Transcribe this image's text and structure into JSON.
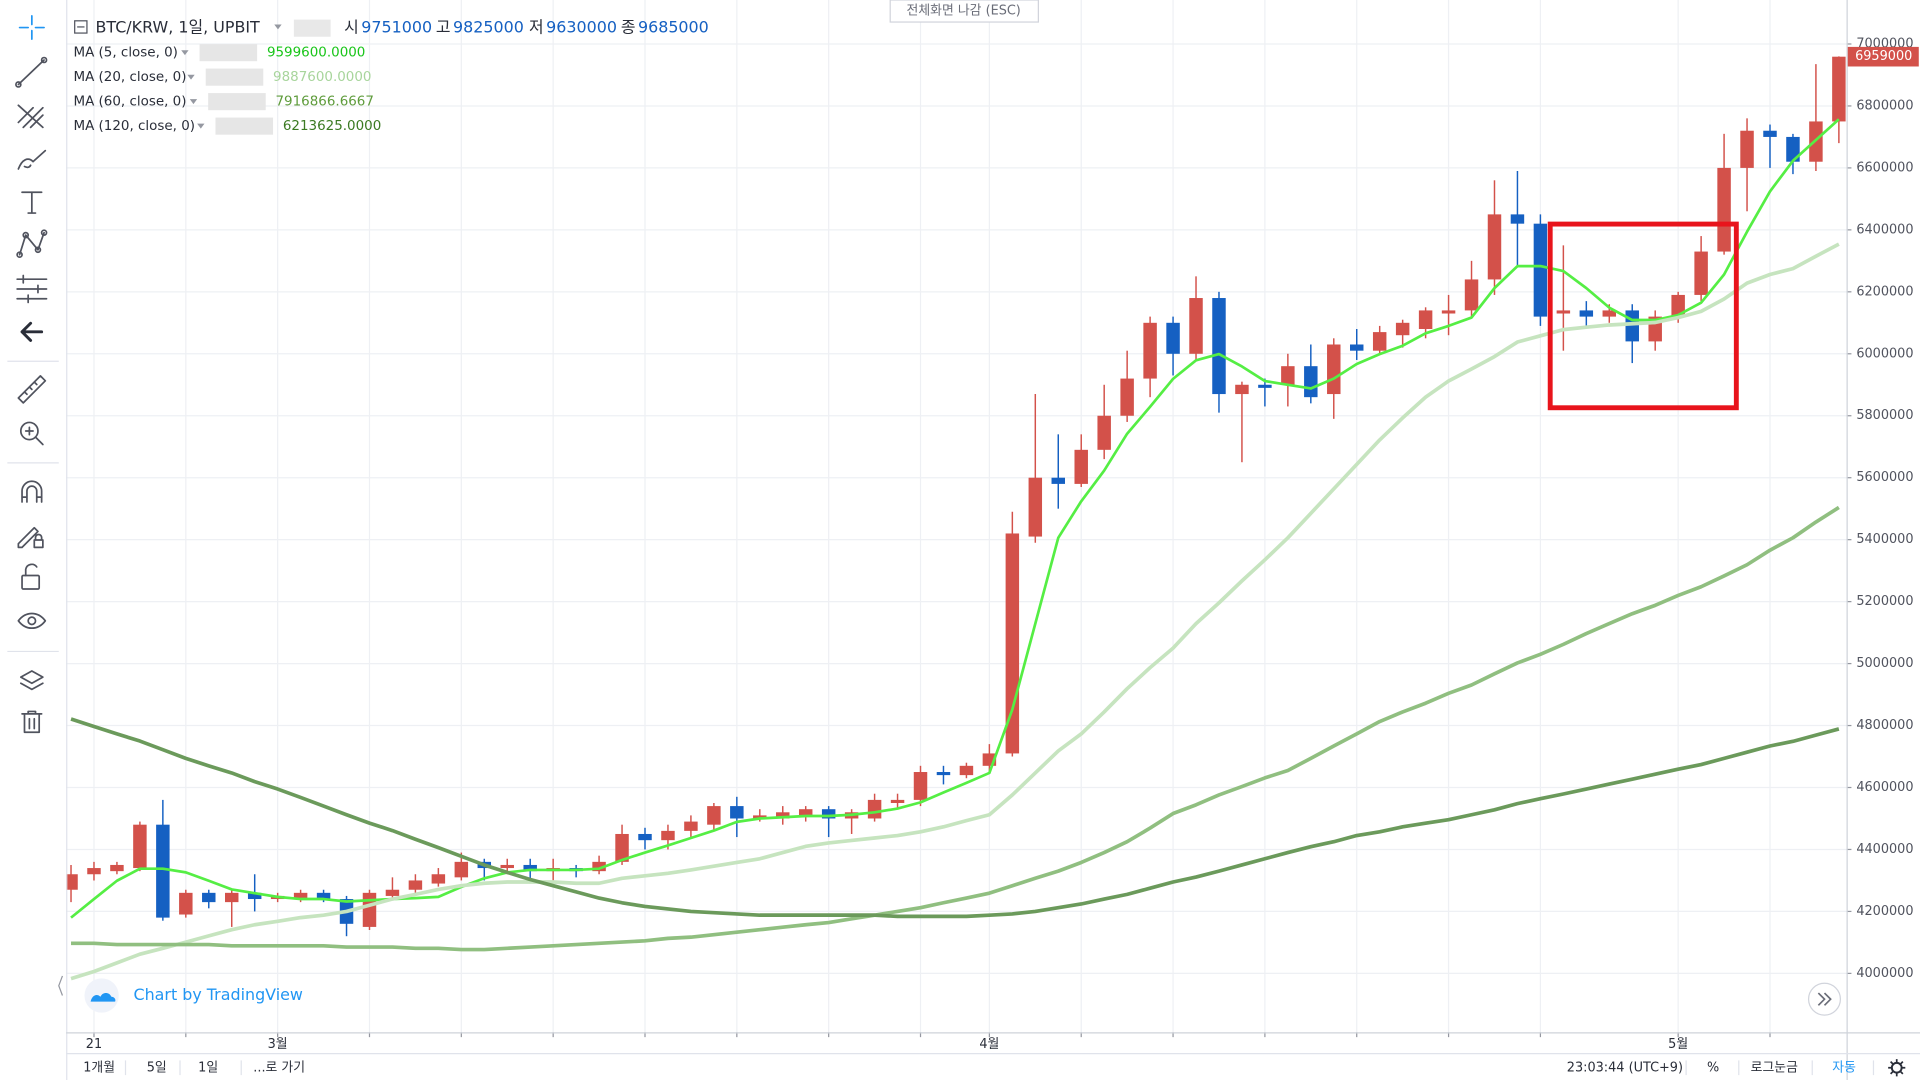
{
  "chart_data": {
    "type": "candlestick",
    "categories": [
      null,
      "21",
      null,
      null,
      null,
      null,
      null,
      null,
      null,
      "3월",
      null,
      null,
      null,
      null,
      null,
      null,
      null,
      null,
      null,
      null,
      null,
      null,
      null,
      null,
      null,
      null,
      null,
      null,
      null,
      null,
      null,
      null,
      null,
      null,
      null,
      null,
      null,
      null,
      null,
      null,
      "4월",
      null,
      null,
      null,
      null,
      null,
      null,
      null,
      null,
      null,
      null,
      null,
      null,
      null,
      null,
      null,
      null,
      null,
      null,
      null,
      null,
      null,
      null,
      null,
      null,
      null,
      null,
      null,
      null,
      null,
      "5월",
      null,
      null,
      null,
      null,
      null,
      null,
      null
    ],
    "candles": {
      "up_color": "#d3514a",
      "down_color": "#1560c2",
      "open": [
        4270000,
        4320000,
        4330000,
        4340000,
        4480000,
        4190000,
        4260000,
        4230000,
        4260000,
        4240000,
        4240000,
        4260000,
        4240000,
        4150000,
        4250000,
        4270000,
        4290000,
        4310000,
        4360000,
        4340000,
        4350000,
        4330000,
        4340000,
        4330000,
        4360000,
        4450000,
        4430000,
        4460000,
        4480000,
        4540000,
        4500000,
        4500000,
        4510000,
        4530000,
        4500000,
        4500000,
        4550000,
        4560000,
        4650000,
        4640000,
        4670000,
        4710000,
        5410000,
        5600000,
        5580000,
        5690000,
        5800000,
        5920000,
        6100000,
        6000000,
        6180000,
        5870000,
        5900000,
        5900000,
        5960000,
        5870000,
        6030000,
        6010000,
        6060000,
        6080000,
        6130000,
        6140000,
        6240000,
        6450000,
        6420000,
        6130000,
        6140000,
        6120000,
        6140000,
        6040000,
        6120000,
        6190000,
        6330000,
        6600000,
        6720000,
        6700000,
        6620000,
        6750000
      ],
      "high": [
        4350000,
        4360000,
        4360000,
        4490000,
        4560000,
        4270000,
        4270000,
        4270000,
        4320000,
        4260000,
        4270000,
        4270000,
        4250000,
        4270000,
        4310000,
        4320000,
        4340000,
        4390000,
        4370000,
        4370000,
        4370000,
        4370000,
        4350000,
        4380000,
        4480000,
        4470000,
        4480000,
        4510000,
        4550000,
        4570000,
        4530000,
        4540000,
        4540000,
        4540000,
        4530000,
        4580000,
        4580000,
        4670000,
        4670000,
        4680000,
        4740000,
        5490000,
        5870000,
        5740000,
        5740000,
        5900000,
        6010000,
        6120000,
        6120000,
        6250000,
        6200000,
        5910000,
        5920000,
        6000000,
        6030000,
        6050000,
        6080000,
        6090000,
        6110000,
        6150000,
        6190000,
        6300000,
        6560000,
        6590000,
        6450000,
        6350000,
        6170000,
        6160000,
        6160000,
        6140000,
        6200000,
        6380000,
        6710000,
        6760000,
        6740000,
        6710000,
        6935000,
        6960000
      ],
      "low": [
        4230000,
        4300000,
        4320000,
        4330000,
        4170000,
        4180000,
        4210000,
        4150000,
        4200000,
        4230000,
        4230000,
        4230000,
        4120000,
        4140000,
        4240000,
        4260000,
        4280000,
        4300000,
        4300000,
        4320000,
        4290000,
        4300000,
        4310000,
        4320000,
        4350000,
        4400000,
        4400000,
        4440000,
        4460000,
        4440000,
        4490000,
        4480000,
        4490000,
        4440000,
        4450000,
        4490000,
        4530000,
        4540000,
        4610000,
        4630000,
        4650000,
        4700000,
        5390000,
        5500000,
        5570000,
        5660000,
        5780000,
        5860000,
        5930000,
        5980000,
        5810000,
        5650000,
        5830000,
        5830000,
        5840000,
        5790000,
        5980000,
        6000000,
        6020000,
        6050000,
        6060000,
        6120000,
        6190000,
        6280000,
        6090000,
        6010000,
        6090000,
        6100000,
        5970000,
        6010000,
        6100000,
        6170000,
        6320000,
        6460000,
        6600000,
        6580000,
        6590000,
        6680000
      ],
      "close": [
        4320000,
        4340000,
        4350000,
        4480000,
        4180000,
        4260000,
        4230000,
        4260000,
        4240000,
        4250000,
        4260000,
        4240000,
        4160000,
        4260000,
        4270000,
        4300000,
        4320000,
        4360000,
        4340000,
        4350000,
        4330000,
        4340000,
        4330000,
        4360000,
        4450000,
        4430000,
        4460000,
        4490000,
        4540000,
        4500000,
        4510000,
        4520000,
        4530000,
        4500000,
        4520000,
        4560000,
        4560000,
        4650000,
        4640000,
        4670000,
        4710000,
        5420000,
        5600000,
        5580000,
        5690000,
        5800000,
        5920000,
        6100000,
        6000000,
        6180000,
        5870000,
        5900000,
        5890000,
        5960000,
        5860000,
        6030000,
        6010000,
        6070000,
        6100000,
        6140000,
        6140000,
        6240000,
        6450000,
        6420000,
        6120000,
        6140000,
        6120000,
        6140000,
        6040000,
        6120000,
        6190000,
        6330000,
        6600000,
        6720000,
        6700000,
        6620000,
        6750000,
        6959000
      ]
    },
    "series": [
      {
        "name": "MA (5, close, 0)",
        "color": "#55ee44",
        "width": 2.2,
        "legend_value": "9599600.0000",
        "legend_color": "#19c519",
        "values": [
          4180000,
          4240000,
          4299000,
          4338000,
          4338000,
          4326000,
          4299000,
          4271000,
          4259000,
          4247000,
          4240000,
          4240000,
          4232000,
          4236000,
          4240000,
          4243000,
          4247000,
          4279000,
          4307000,
          4326000,
          4334000,
          4334000,
          4334000,
          4338000,
          4366000,
          4390000,
          4413000,
          4437000,
          4461000,
          4489000,
          4500000,
          4504000,
          4508000,
          4508000,
          4512000,
          4520000,
          4532000,
          4552000,
          4584000,
          4615000,
          4647000,
          4852000,
          5129000,
          5406000,
          5524000,
          5623000,
          5742000,
          5829000,
          5919000,
          5979000,
          5999000,
          5959000,
          5912000,
          5900000,
          5888000,
          5920000,
          5967000,
          5999000,
          6026000,
          6066000,
          6090000,
          6117000,
          6212000,
          6283000,
          6283000,
          6267000,
          6212000,
          6149000,
          6109000,
          6109000,
          6125000,
          6165000,
          6256000,
          6394000,
          6524000,
          6623000,
          6690000,
          6757000
        ]
      },
      {
        "name": "MA (20, close, 0)",
        "color": "#c6e4bf",
        "width": 3,
        "legend_value": "9887600.0000",
        "legend_color": "#a8d59c",
        "values": [
          3983000,
          4006000,
          4034000,
          4062000,
          4081000,
          4101000,
          4121000,
          4141000,
          4157000,
          4168000,
          4180000,
          4188000,
          4200000,
          4220000,
          4240000,
          4255000,
          4271000,
          4283000,
          4291000,
          4295000,
          4295000,
          4295000,
          4291000,
          4291000,
          4307000,
          4315000,
          4323000,
          4334000,
          4346000,
          4358000,
          4370000,
          4390000,
          4410000,
          4421000,
          4429000,
          4437000,
          4445000,
          4457000,
          4473000,
          4493000,
          4512000,
          4576000,
          4647000,
          4718000,
          4773000,
          4844000,
          4919000,
          4987000,
          5050000,
          5129000,
          5196000,
          5267000,
          5335000,
          5406000,
          5485000,
          5564000,
          5643000,
          5722000,
          5793000,
          5860000,
          5912000,
          5951000,
          5991000,
          6038000,
          6058000,
          6078000,
          6086000,
          6093000,
          6097000,
          6101000,
          6117000,
          6137000,
          6177000,
          6228000,
          6256000,
          6275000,
          6315000,
          6354000
        ]
      },
      {
        "name": "MA (60, close, 0)",
        "color": "#90bf80",
        "width": 3,
        "legend_value": "7916866.6667",
        "legend_color": "#5f9c3c",
        "values": [
          4097000,
          4097000,
          4093000,
          4093000,
          4093000,
          4093000,
          4093000,
          4089000,
          4089000,
          4089000,
          4089000,
          4089000,
          4085000,
          4085000,
          4085000,
          4081000,
          4081000,
          4077000,
          4077000,
          4081000,
          4085000,
          4089000,
          4093000,
          4097000,
          4101000,
          4105000,
          4113000,
          4117000,
          4125000,
          4133000,
          4141000,
          4149000,
          4157000,
          4164000,
          4176000,
          4188000,
          4200000,
          4212000,
          4228000,
          4243000,
          4259000,
          4283000,
          4307000,
          4330000,
          4358000,
          4390000,
          4425000,
          4469000,
          4516000,
          4544000,
          4576000,
          4603000,
          4631000,
          4655000,
          4694000,
          4734000,
          4773000,
          4813000,
          4844000,
          4872000,
          4904000,
          4931000,
          4967000,
          5002000,
          5030000,
          5062000,
          5097000,
          5129000,
          5161000,
          5188000,
          5220000,
          5248000,
          5283000,
          5319000,
          5366000,
          5406000,
          5457000,
          5504000
        ]
      },
      {
        "name": "MA (120, close, 0)",
        "color": "#6b9a5b",
        "width": 3,
        "legend_value": "6213625.0000",
        "legend_color": "#3b7a22",
        "values": [
          4821000,
          4797000,
          4773000,
          4750000,
          4722000,
          4694000,
          4670000,
          4647000,
          4619000,
          4595000,
          4568000,
          4540000,
          4512000,
          4485000,
          4461000,
          4433000,
          4406000,
          4378000,
          4350000,
          4326000,
          4303000,
          4283000,
          4263000,
          4243000,
          4228000,
          4216000,
          4208000,
          4200000,
          4196000,
          4192000,
          4188000,
          4188000,
          4188000,
          4188000,
          4188000,
          4188000,
          4184000,
          4184000,
          4184000,
          4184000,
          4188000,
          4192000,
          4200000,
          4212000,
          4224000,
          4240000,
          4255000,
          4275000,
          4295000,
          4311000,
          4330000,
          4350000,
          4370000,
          4390000,
          4409000,
          4425000,
          4445000,
          4457000,
          4473000,
          4485000,
          4496000,
          4512000,
          4528000,
          4548000,
          4564000,
          4579000,
          4595000,
          4611000,
          4627000,
          4643000,
          4659000,
          4674000,
          4694000,
          4714000,
          4734000,
          4749000,
          4769000,
          4789000
        ]
      }
    ],
    "ylim": [
      3810000,
      7142000
    ],
    "yticks": [
      4000000,
      4200000,
      4400000,
      4600000,
      4800000,
      5000000,
      5200000,
      5400000,
      5600000,
      5800000,
      6000000,
      6200000,
      6400000,
      6600000,
      6800000,
      7000000
    ],
    "grid": true
  },
  "ui": {
    "symbol": "BTC/KRW, 1일, UPBIT",
    "ohlc": [
      {
        "label": "시",
        "value": 9751000
      },
      {
        "label": "고",
        "value": 9825000
      },
      {
        "label": "저",
        "value": 9630000
      },
      {
        "label": "종",
        "value": 9685000
      }
    ],
    "fullscreen_exit": "전체화면 나감 (ESC)",
    "watermark": "Chart by TradingView",
    "ranges": [
      "1개월",
      "5일",
      "1일",
      "...로 가기"
    ],
    "clock": "23:03:44 (UTC+9)",
    "scale_options": [
      "%",
      "로그눈금",
      "자동"
    ]
  }
}
